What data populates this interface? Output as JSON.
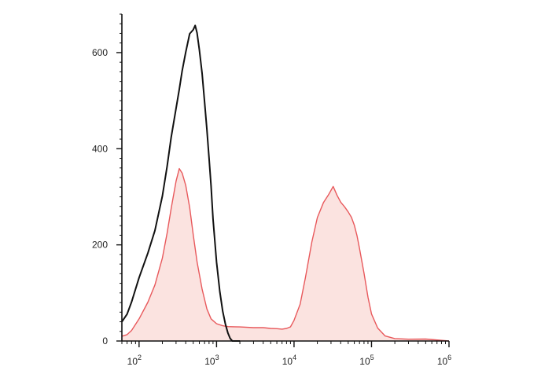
{
  "chart_data": {
    "type": "area",
    "title": "",
    "xlabel": "",
    "ylabel": "",
    "x_scale": "log",
    "xlim": [
      60,
      1000000
    ],
    "ylim": [
      0,
      680
    ],
    "grid": false,
    "x_ticks": [
      {
        "value": 100,
        "base": "10",
        "exp": "2"
      },
      {
        "value": 1000,
        "base": "10",
        "exp": "3"
      },
      {
        "value": 10000,
        "base": "10",
        "exp": "4"
      },
      {
        "value": 100000,
        "base": "10",
        "exp": "5"
      },
      {
        "value": 1000000,
        "base": "10",
        "exp": "6"
      }
    ],
    "y_ticks": [
      {
        "value": 0,
        "label": "0"
      },
      {
        "value": 200,
        "label": "200"
      },
      {
        "value": 400,
        "label": "400"
      },
      {
        "value": 600,
        "label": "600"
      }
    ],
    "series": [
      {
        "color": "#e8595c",
        "fill": "#fbe3e0",
        "x": [
          60,
          70,
          80,
          100,
          130,
          160,
          200,
          230,
          260,
          300,
          330,
          360,
          400,
          450,
          500,
          560,
          650,
          750,
          850,
          1000,
          1200,
          1400,
          1700,
          2000,
          3000,
          4000,
          5000,
          6000,
          7000,
          8000,
          9000,
          10000,
          12000,
          14000,
          17000,
          20000,
          24000,
          28000,
          32000,
          36000,
          40000,
          45000,
          50000,
          55000,
          60000,
          65000,
          70000,
          80000,
          90000,
          100000,
          120000,
          150000,
          200000,
          300000,
          500000,
          1000000
        ],
        "y": [
          10,
          15,
          25,
          50,
          85,
          120,
          175,
          225,
          275,
          330,
          355,
          345,
          320,
          275,
          220,
          165,
          110,
          70,
          50,
          40,
          35,
          32,
          30,
          28,
          25,
          24,
          22,
          22,
          22,
          25,
          30,
          45,
          80,
          135,
          210,
          260,
          290,
          305,
          320,
          300,
          285,
          275,
          265,
          255,
          240,
          220,
          195,
          145,
          95,
          60,
          30,
          12,
          5,
          2,
          1,
          0
        ]
      },
      {
        "color": "#111111",
        "fill": "none",
        "x": [
          60,
          70,
          80,
          100,
          130,
          160,
          200,
          230,
          260,
          300,
          330,
          360,
          400,
          450,
          500,
          530,
          560,
          600,
          650,
          700,
          750,
          800,
          850,
          900,
          1000,
          1100,
          1200,
          1300,
          1400,
          1500,
          1600,
          1800,
          2000
        ],
        "y": [
          40,
          60,
          85,
          135,
          185,
          230,
          300,
          360,
          420,
          480,
          520,
          560,
          600,
          640,
          650,
          660,
          645,
          610,
          560,
          500,
          440,
          380,
          320,
          250,
          160,
          100,
          60,
          35,
          18,
          8,
          3,
          1,
          0
        ]
      }
    ]
  }
}
